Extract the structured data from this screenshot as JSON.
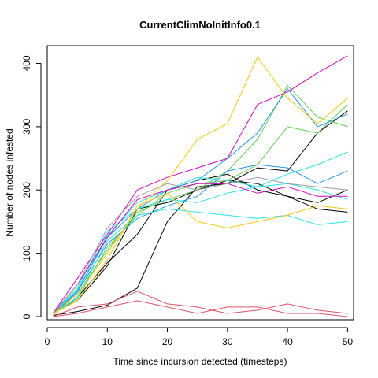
{
  "chart_data": {
    "type": "line",
    "title": "CurrentClimNoInitInfo0.1",
    "xlabel": "Time since incursion detected (timesteps)",
    "ylabel": "Number of nodes infested",
    "xlim": [
      0,
      51
    ],
    "ylim": [
      -5,
      428
    ],
    "xticks": [
      0,
      10,
      20,
      30,
      40,
      50
    ],
    "yticks": [
      0,
      100,
      200,
      300,
      400
    ],
    "grid": false,
    "legend": "none",
    "x": [
      1,
      5,
      10,
      15,
      20,
      25,
      30,
      35,
      40,
      45,
      50
    ],
    "series": [
      {
        "color": "#000000",
        "values": [
          2,
          8,
          18,
          45,
          150,
          205,
          210,
          235,
          230,
          290,
          325
        ]
      },
      {
        "color": "#000000",
        "values": [
          5,
          30,
          85,
          130,
          200,
          215,
          225,
          200,
          190,
          180,
          200
        ]
      },
      {
        "color": "#000000",
        "values": [
          6,
          25,
          80,
          170,
          180,
          200,
          215,
          210,
          190,
          170,
          165
        ]
      },
      {
        "color": "#DF536B",
        "values": [
          0,
          15,
          20,
          40,
          20,
          15,
          5,
          10,
          20,
          10,
          5
        ]
      },
      {
        "color": "#DF536B",
        "values": [
          0,
          5,
          15,
          25,
          15,
          5,
          15,
          15,
          5,
          5,
          0
        ]
      },
      {
        "color": "#61D04F",
        "values": [
          5,
          35,
          105,
          165,
          185,
          200,
          230,
          280,
          365,
          315,
          300
        ]
      },
      {
        "color": "#61D04F",
        "values": [
          4,
          28,
          110,
          160,
          195,
          210,
          215,
          240,
          300,
          290,
          335
        ]
      },
      {
        "color": "#2297E6",
        "values": [
          5,
          40,
          125,
          170,
          200,
          215,
          250,
          290,
          360,
          300,
          320
        ]
      },
      {
        "color": "#2297E6",
        "values": [
          4,
          38,
          115,
          155,
          175,
          190,
          230,
          240,
          235,
          210,
          230
        ]
      },
      {
        "color": "#28E2E5",
        "values": [
          5,
          45,
          135,
          170,
          185,
          180,
          195,
          205,
          210,
          200,
          185
        ]
      },
      {
        "color": "#28E2E5",
        "values": [
          5,
          30,
          120,
          160,
          170,
          165,
          160,
          155,
          160,
          145,
          150
        ]
      },
      {
        "color": "#28E2E5",
        "values": [
          5,
          42,
          128,
          180,
          200,
          220,
          215,
          205,
          225,
          240,
          260
        ]
      },
      {
        "color": "#CD0BBC",
        "values": [
          6,
          60,
          130,
          200,
          220,
          235,
          250,
          335,
          355,
          385,
          412
        ]
      },
      {
        "color": "#CD0BBC",
        "values": [
          5,
          50,
          125,
          185,
          200,
          210,
          210,
          195,
          205,
          190,
          190
        ]
      },
      {
        "color": "#F5C710",
        "values": [
          4,
          35,
          100,
          170,
          215,
          280,
          305,
          410,
          345,
          305,
          345
        ]
      },
      {
        "color": "#F5C710",
        "values": [
          5,
          25,
          90,
          175,
          195,
          150,
          140,
          150,
          160,
          175,
          170
        ]
      },
      {
        "color": "#9E9E9E",
        "values": [
          6,
          50,
          140,
          190,
          210,
          200,
          210,
          220,
          210,
          205,
          200
        ]
      }
    ]
  }
}
